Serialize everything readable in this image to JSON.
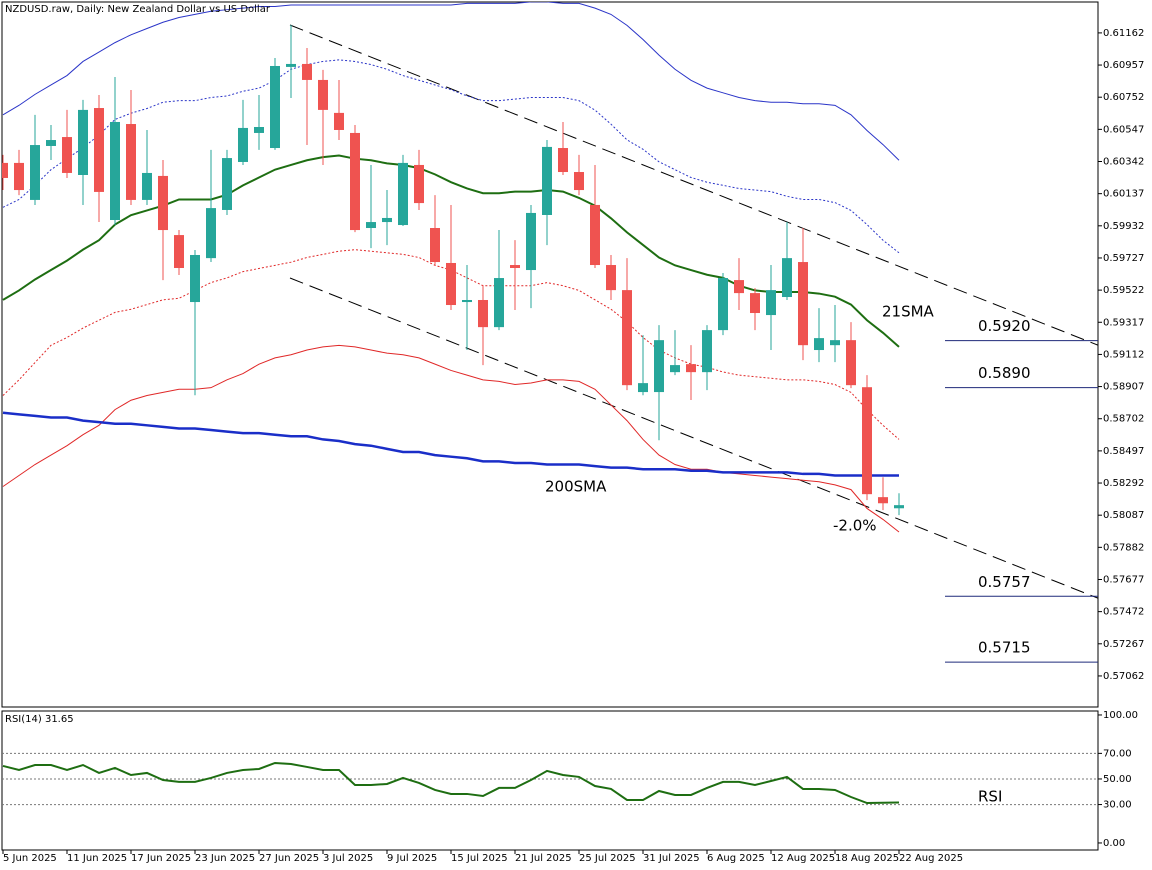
{
  "chart_data": [
    {
      "type": "candlestick",
      "title": "NZDUSD.raw, Daily:  New Zealand Dollar vs US Dollar",
      "categories": [
        "5 Jun 2025",
        null,
        null,
        null,
        "11 Jun 2025",
        null,
        null,
        null,
        "17 Jun 2025",
        null,
        null,
        null,
        "23 Jun 2025",
        null,
        null,
        null,
        "27 Jun 2025",
        null,
        null,
        null,
        "3 Jul 2025",
        null,
        null,
        null,
        "9 Jul 2025",
        null,
        null,
        null,
        "15 Jul 2025",
        null,
        null,
        null,
        "21 Jul 2025",
        null,
        null,
        null,
        "25 Jul 2025",
        null,
        null,
        null,
        "31 Jul 2025",
        null,
        null,
        null,
        "6 Aug 2025",
        null,
        null,
        null,
        "12 Aug 2025",
        null,
        null,
        null,
        "18 Aug 2025",
        null,
        null,
        null,
        "22 Aug 2025"
      ],
      "open": [
        0.60333,
        0.60333,
        0.60097,
        0.60441,
        0.60498,
        0.60256,
        0.60683,
        0.59969,
        0.60581,
        0.60097,
        0.6025,
        0.59873,
        0.59446,
        0.59726,
        0.60033,
        0.60339,
        0.60524,
        0.60428,
        0.60945,
        0.60964,
        0.60862,
        0.60652,
        0.60524,
        0.59918,
        0.59956,
        0.59937,
        0.6032,
        0.59918,
        0.59695,
        0.59446,
        0.59459,
        0.59286,
        0.59682,
        0.5965,
        0.60001,
        0.60428,
        0.60275,
        0.60065,
        0.59682,
        0.59522,
        0.58872,
        0.58872,
        0.58999,
        0.5905,
        0.58999,
        0.59267,
        0.59586,
        0.59503,
        0.59363,
        0.59478,
        0.59701,
        0.5914,
        0.59171,
        0.59203,
        0.58903,
        0.58202,
        0.58131
      ],
      "high": [
        0.60384,
        0.60416,
        0.60639,
        0.60575,
        0.60671,
        0.60735,
        0.60766,
        0.60881,
        0.60798,
        0.60543,
        0.60352,
        0.59905,
        0.59778,
        0.60416,
        0.60416,
        0.60735,
        0.60766,
        0.61002,
        0.61213,
        0.61066,
        0.60926,
        0.60862,
        0.60575,
        0.6032,
        0.6016,
        0.60384,
        0.60416,
        0.60128,
        0.60065,
        0.59682,
        0.59554,
        0.59905,
        0.59841,
        0.60065,
        0.60479,
        0.60594,
        0.60384,
        0.6032,
        0.59746,
        0.59726,
        0.59235,
        0.59299,
        0.59267,
        0.59171,
        0.59299,
        0.59631,
        0.59726,
        0.59535,
        0.59682,
        0.59956,
        0.59918,
        0.59407,
        0.59427,
        0.59318,
        0.5898,
        0.58329,
        0.58227
      ],
      "low": [
        0.6016,
        0.60128,
        0.60065,
        0.60352,
        0.60237,
        0.60065,
        0.59956,
        0.59937,
        0.60065,
        0.60065,
        0.59586,
        0.59618,
        0.58852,
        0.59701,
        0.60001,
        0.6032,
        0.60416,
        0.60416,
        0.60747,
        0.60447,
        0.6032,
        0.60479,
        0.59892,
        0.5979,
        0.59809,
        0.59931,
        0.60033,
        0.59682,
        0.59395,
        0.5914,
        0.59044,
        0.59267,
        0.59395,
        0.59407,
        0.59809,
        0.60256,
        0.60128,
        0.59663,
        0.59459,
        0.58884,
        0.58852,
        0.58565,
        0.5898,
        0.58821,
        0.58884,
        0.59235,
        0.59395,
        0.59267,
        0.5914,
        0.59459,
        0.59076,
        0.59063,
        0.59063,
        0.58897,
        0.58183,
        0.58119,
        0.58087
      ],
      "close": [
        0.60237,
        0.6016,
        0.60447,
        0.60479,
        0.60269,
        0.60671,
        0.60148,
        0.60594,
        0.60097,
        0.60269,
        0.59905,
        0.59663,
        0.59746,
        0.60045,
        0.60364,
        0.60556,
        0.60562,
        0.60951,
        0.60964,
        0.60862,
        0.60671,
        0.60543,
        0.59905,
        0.59956,
        0.59982,
        0.60333,
        0.60077,
        0.59701,
        0.59427,
        0.59459,
        0.59286,
        0.59599,
        0.59663,
        0.60014,
        0.60435,
        0.60275,
        0.6016,
        0.59682,
        0.59522,
        0.58916,
        0.58929,
        0.59203,
        0.59044,
        0.58999,
        0.59267,
        0.59599,
        0.59503,
        0.59376,
        0.59522,
        0.59726,
        0.59171,
        0.59216,
        0.59203,
        0.58916,
        0.58221,
        0.58163,
        0.58151
      ],
      "up_color": "#26a69a",
      "down_color": "#ef5350",
      "ylim": [
        0.56864,
        0.61359
      ],
      "yticks": [
        0.61162,
        0.60957,
        0.60752,
        0.60547,
        0.60342,
        0.60137,
        0.59932,
        0.59727,
        0.59522,
        0.59317,
        0.59112,
        0.58907,
        0.58702,
        0.58497,
        0.58292,
        0.58087,
        0.57882,
        0.57677,
        0.57472,
        0.57267,
        0.57062
      ],
      "lines": [
        {
          "color": "#2b35c8",
          "width": 1,
          "dash": "none",
          "values": [
            0.6064,
            0.607,
            0.6077,
            0.6083,
            0.6089,
            0.6098,
            0.6104,
            0.611,
            0.6115,
            0.6119,
            0.6123,
            0.6126,
            0.6128,
            0.613,
            0.6131,
            0.6132,
            0.6133,
            0.6133,
            0.6134,
            0.6134,
            0.6134,
            0.6134,
            0.6134,
            0.6134,
            0.6134,
            0.6134,
            0.6134,
            0.6134,
            0.6134,
            0.6135,
            0.6135,
            0.6135,
            0.6135,
            0.6136,
            0.6136,
            0.6135,
            0.6135,
            0.6132,
            0.6128,
            0.6121,
            0.6112,
            0.6102,
            0.6093,
            0.6086,
            0.6081,
            0.6078,
            0.6075,
            0.6073,
            0.6072,
            0.6072,
            0.6071,
            0.6071,
            0.607,
            0.6064,
            0.6054,
            0.6045,
            0.6035
          ]
        },
        {
          "color": "#2b35c8",
          "width": 1,
          "dash": "2,2",
          "values": [
            0.6005,
            0.601,
            0.6019,
            0.6029,
            0.6036,
            0.6043,
            0.6051,
            0.6061,
            0.6065,
            0.6068,
            0.6072,
            0.6073,
            0.6073,
            0.6075,
            0.6076,
            0.6079,
            0.6081,
            0.6086,
            0.6093,
            0.6096,
            0.6098,
            0.6099,
            0.6098,
            0.6096,
            0.6093,
            0.6089,
            0.6086,
            0.6083,
            0.608,
            0.6076,
            0.6073,
            0.6073,
            0.6074,
            0.6075,
            0.6075,
            0.6075,
            0.6073,
            0.6067,
            0.6058,
            0.6048,
            0.6042,
            0.6034,
            0.6029,
            0.6024,
            0.6021,
            0.6019,
            0.6017,
            0.6016,
            0.6015,
            0.6012,
            0.601,
            0.601,
            0.6008,
            0.6003,
            0.5994,
            0.5984,
            0.5976
          ]
        },
        {
          "label": "21SMA",
          "color": "#1e6e12",
          "width": 2,
          "dash": "none",
          "values": [
            0.5946,
            0.5952,
            0.5959,
            0.5965,
            0.5971,
            0.5978,
            0.5984,
            0.5994,
            0.6,
            0.6003,
            0.6006,
            0.601,
            0.601,
            0.601,
            0.6013,
            0.6019,
            0.6024,
            0.6029,
            0.6032,
            0.6035,
            0.6037,
            0.6038,
            0.6036,
            0.6035,
            0.6033,
            0.6032,
            0.603,
            0.6026,
            0.6021,
            0.6017,
            0.6014,
            0.6014,
            0.6015,
            0.6015,
            0.6016,
            0.6015,
            0.6011,
            0.6006,
            0.5998,
            0.5989,
            0.5981,
            0.5973,
            0.5968,
            0.5965,
            0.5962,
            0.596,
            0.5955,
            0.5952,
            0.5951,
            0.5951,
            0.5951,
            0.595,
            0.5948,
            0.5943,
            0.5933,
            0.5925,
            0.5916
          ]
        },
        {
          "color": "#e02828",
          "width": 1,
          "dash": "2,2",
          "values": [
            0.5885,
            0.5895,
            0.5906,
            0.5917,
            0.5922,
            0.5928,
            0.5933,
            0.5938,
            0.594,
            0.5943,
            0.5946,
            0.5947,
            0.5952,
            0.5957,
            0.596,
            0.5964,
            0.5966,
            0.5968,
            0.597,
            0.5973,
            0.5975,
            0.5977,
            0.5978,
            0.5977,
            0.5976,
            0.5975,
            0.5973,
            0.5968,
            0.5965,
            0.596,
            0.5955,
            0.5955,
            0.5955,
            0.5955,
            0.5957,
            0.5955,
            0.5952,
            0.5946,
            0.594,
            0.5932,
            0.5922,
            0.5914,
            0.5909,
            0.5905,
            0.5903,
            0.59,
            0.5898,
            0.5897,
            0.5896,
            0.5895,
            0.5895,
            0.5894,
            0.5892,
            0.5887,
            0.5876,
            0.5866,
            0.5857
          ]
        },
        {
          "color": "#e02828",
          "width": 1,
          "dash": "none",
          "values": [
            0.5827,
            0.5834,
            0.5841,
            0.5847,
            0.5853,
            0.586,
            0.5866,
            0.5876,
            0.5882,
            0.5885,
            0.5887,
            0.5889,
            0.5889,
            0.589,
            0.5895,
            0.5899,
            0.5905,
            0.5909,
            0.5911,
            0.5914,
            0.5916,
            0.5917,
            0.5916,
            0.5914,
            0.5912,
            0.5911,
            0.5909,
            0.5905,
            0.5901,
            0.5898,
            0.5895,
            0.5894,
            0.5892,
            0.5893,
            0.5895,
            0.5895,
            0.5894,
            0.5889,
            0.5879,
            0.5869,
            0.5857,
            0.5847,
            0.5841,
            0.5838,
            0.5838,
            0.5836,
            0.5835,
            0.5834,
            0.5833,
            0.5832,
            0.5831,
            0.583,
            0.5828,
            0.5825,
            0.5813,
            0.5806,
            0.5798
          ]
        },
        {
          "label": "200SMA",
          "color": "#1a2ec8",
          "width": 2.5,
          "dash": "none",
          "values": [
            0.5874,
            0.5873,
            0.5872,
            0.5871,
            0.5871,
            0.5869,
            0.5868,
            0.5867,
            0.5867,
            0.5866,
            0.5865,
            0.5864,
            0.5864,
            0.5863,
            0.5862,
            0.5861,
            0.5861,
            0.586,
            0.5859,
            0.5859,
            0.5857,
            0.5856,
            0.5854,
            0.5853,
            0.5851,
            0.5849,
            0.5849,
            0.5847,
            0.5846,
            0.5845,
            0.5843,
            0.5843,
            0.5842,
            0.5842,
            0.5841,
            0.5841,
            0.5841,
            0.584,
            0.5839,
            0.5839,
            0.5838,
            0.5838,
            0.5838,
            0.5837,
            0.5837,
            0.5836,
            0.5836,
            0.5836,
            0.5836,
            0.5836,
            0.5835,
            0.5835,
            0.5834,
            0.5834,
            0.5834,
            0.5834,
            0.5834
          ]
        }
      ],
      "annotation": {
        "text": "-2.0%",
        "color": "#e53950"
      },
      "levels": [
        {
          "value": 0.592,
          "label": "0.5920"
        },
        {
          "value": 0.589,
          "label": "0.5890"
        },
        {
          "value": 0.5757,
          "label": "0.5757"
        },
        {
          "value": 0.5715,
          "label": "0.5715"
        }
      ],
      "level_color": "#1f2a7a"
    },
    {
      "type": "line",
      "title": "RSI(14) 31.65",
      "annotation": "RSI",
      "color": "#1e6e12",
      "values": [
        60.2,
        57.0,
        60.9,
        60.9,
        57.0,
        60.9,
        54.7,
        58.6,
        53.1,
        54.7,
        49.2,
        47.7,
        47.7,
        50.8,
        54.7,
        57.0,
        57.8,
        62.5,
        61.7,
        59.4,
        57.0,
        57.0,
        45.3,
        45.3,
        46.1,
        50.8,
        46.9,
        41.4,
        38.3,
        38.3,
        36.7,
        43.0,
        43.0,
        49.2,
        56.3,
        53.1,
        51.6,
        44.5,
        42.2,
        33.6,
        33.6,
        40.6,
        37.5,
        37.5,
        43.0,
        47.7,
        47.7,
        45.3,
        48.4,
        51.6,
        42.2,
        42.2,
        41.4,
        35.9,
        31.2,
        31.4,
        31.65
      ],
      "ylim": [
        -5.5,
        103.1
      ],
      "yticks": [
        {
          "value": 100,
          "label": "100.00"
        },
        {
          "value": 70,
          "label": "70.00"
        },
        {
          "value": 50,
          "label": "50.00"
        },
        {
          "value": 30,
          "label": "30.00"
        },
        {
          "value": 0,
          "label": "0.00"
        }
      ]
    }
  ]
}
